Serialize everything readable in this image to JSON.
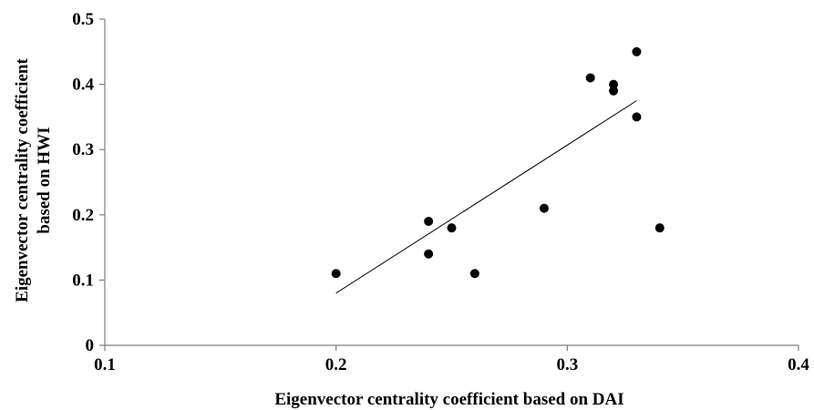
{
  "chart_data": {
    "type": "scatter",
    "title": "",
    "xlabel": "Eigenvector centrality coefficient based on DAI",
    "ylabel_lines": [
      "Eigenvector centrality coefficient",
      "based on HWI"
    ],
    "xlim": [
      0.1,
      0.4
    ],
    "ylim": [
      0,
      0.5
    ],
    "x_ticks": [
      0.1,
      0.2,
      0.3,
      0.4
    ],
    "x_tick_labels": [
      "0.1",
      "0.2",
      "0.3",
      "0.4"
    ],
    "y_ticks": [
      0,
      0.1,
      0.2,
      0.3,
      0.4,
      0.5
    ],
    "y_tick_labels": [
      "0",
      "0.1",
      "0.2",
      "0.3",
      "0.4",
      "0.5"
    ],
    "grid": false,
    "legend": "none",
    "series": [
      {
        "points": [
          {
            "x": 0.2,
            "y": 0.11
          },
          {
            "x": 0.24,
            "y": 0.19
          },
          {
            "x": 0.24,
            "y": 0.14
          },
          {
            "x": 0.25,
            "y": 0.18
          },
          {
            "x": 0.26,
            "y": 0.11
          },
          {
            "x": 0.29,
            "y": 0.21
          },
          {
            "x": 0.31,
            "y": 0.41
          },
          {
            "x": 0.32,
            "y": 0.4
          },
          {
            "x": 0.32,
            "y": 0.39
          },
          {
            "x": 0.33,
            "y": 0.45
          },
          {
            "x": 0.33,
            "y": 0.35
          },
          {
            "x": 0.34,
            "y": 0.18
          }
        ]
      }
    ],
    "trendline": {
      "type": "linear",
      "x_range": [
        0.2,
        0.33
      ],
      "y_range": [
        0.08,
        0.375
      ]
    },
    "colors": {
      "marker": "#000000",
      "axis": "#7f7f7f",
      "trendline": "#000000"
    }
  }
}
